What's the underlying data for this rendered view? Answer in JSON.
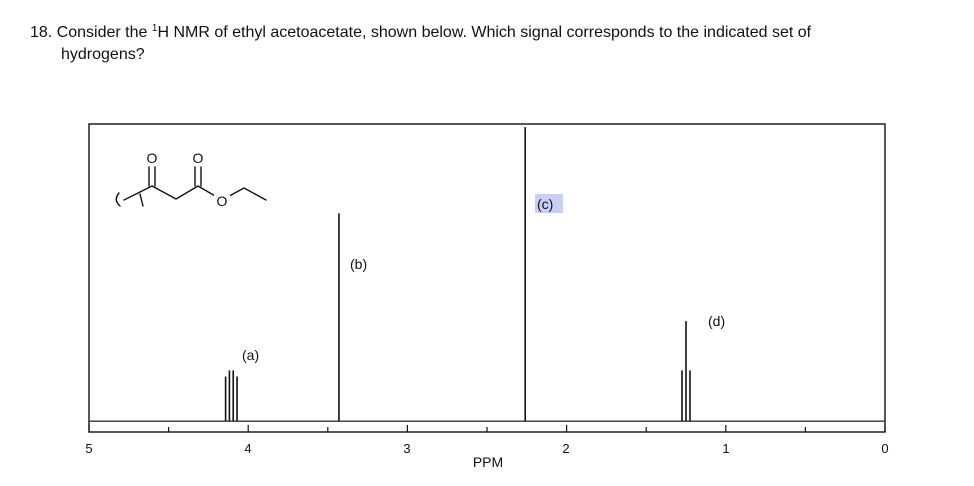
{
  "question": {
    "number": "18.",
    "text_before_sup": "Consider the ",
    "superscript": "1",
    "text_after_sup": "H NMR of ethyl acetoacetate, shown below.  Which signal corresponds to the indicated set of",
    "line2": "hydrogens?"
  },
  "molecule": {
    "atom_labels": [
      "O",
      "O",
      "O"
    ]
  },
  "chart_data": {
    "type": "line",
    "xlabel": "PPM",
    "x_ticks": [
      "5",
      "4",
      "3",
      "2",
      "1",
      "0"
    ],
    "xlim": [
      5,
      0
    ],
    "baseline_level": 0.035,
    "ylim": [
      0,
      1
    ],
    "highlighted_label": "(c)",
    "signals": [
      {
        "label": "(a)",
        "shift": 4.1,
        "multiplicity": "quartet",
        "lines": [
          4.142,
          4.118,
          4.094,
          4.07
        ],
        "heights": [
          0.18,
          0.2,
          0.2,
          0.18
        ]
      },
      {
        "label": "(b)",
        "shift": 3.43,
        "multiplicity": "singlet",
        "lines": [
          3.43
        ],
        "heights": [
          0.71
        ]
      },
      {
        "label": "(c)",
        "shift": 2.26,
        "multiplicity": "singlet",
        "lines": [
          2.26
        ],
        "heights": [
          0.99
        ]
      },
      {
        "label": "(d)",
        "shift": 1.25,
        "multiplicity": "triplet",
        "lines": [
          1.275,
          1.25,
          1.225
        ],
        "heights": [
          0.2,
          0.36,
          0.2
        ]
      }
    ]
  }
}
